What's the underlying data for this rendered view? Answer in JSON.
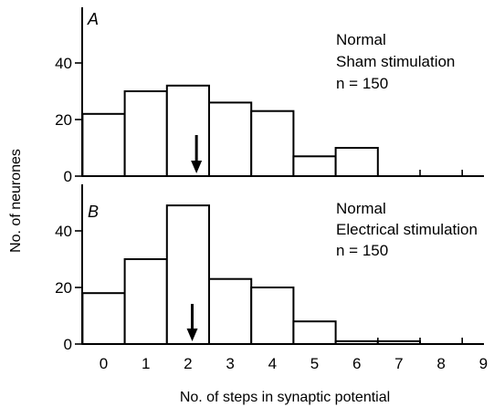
{
  "chart_data": {
    "type": "bar",
    "xlabel": "No. of steps in synaptic potential",
    "ylabel": "No. of neurones",
    "x_ticks": [
      "0",
      "1",
      "2",
      "3",
      "4",
      "5",
      "6",
      "7",
      "8",
      "9"
    ],
    "panels": [
      {
        "label": "A",
        "legend": [
          "Normal",
          "Sham stimulation",
          "n = 150"
        ],
        "ylim": [
          0,
          55
        ],
        "y_ticks": [
          0,
          20,
          40
        ],
        "values": [
          22,
          30,
          32,
          26,
          23,
          7,
          10,
          0,
          0,
          0
        ],
        "arrow_x": 2.2
      },
      {
        "label": "B",
        "legend": [
          "Normal",
          "Electrical stimulation",
          "n = 150"
        ],
        "ylim": [
          0,
          55
        ],
        "y_ticks": [
          0,
          20,
          40
        ],
        "values": [
          18,
          30,
          49,
          23,
          20,
          8,
          1,
          1,
          0,
          0
        ],
        "arrow_x": 2.1
      }
    ]
  }
}
